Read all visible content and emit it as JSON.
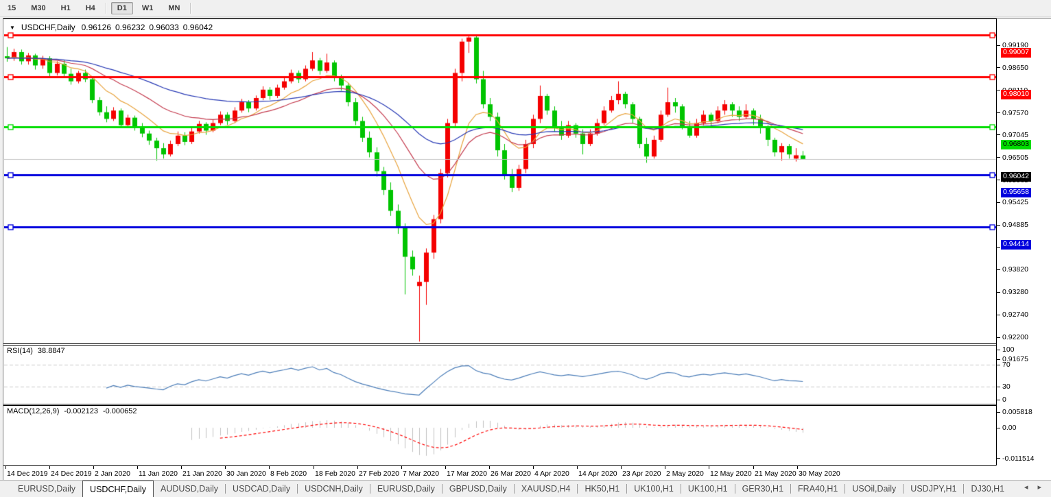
{
  "toolbar": {
    "timeframes": [
      {
        "label": "15",
        "active": false
      },
      {
        "label": "M30",
        "active": false
      },
      {
        "label": "H1",
        "active": false
      },
      {
        "label": "H4",
        "active": false
      },
      {
        "label": "D1",
        "active": true
      },
      {
        "label": "W1",
        "active": false
      },
      {
        "label": "MN",
        "active": false
      }
    ]
  },
  "chart_header": {
    "dropdown_icon": "▼",
    "symbol": "USDCHF,Daily",
    "open": "0.96126",
    "high": "0.96232",
    "low": "0.96033",
    "close": "0.96042"
  },
  "price_axis": {
    "ticks": [
      "0.99190",
      "0.98650",
      "0.98110",
      "0.97570",
      "0.97045",
      "0.96505",
      "0.95965",
      "0.95425",
      "0.94885",
      "0.94345",
      "0.93820",
      "0.93280",
      "0.92740",
      "0.92200",
      "0.91675"
    ]
  },
  "chart_data": {
    "type": "candlestick",
    "symbol": "USDCHF",
    "timeframe": "Daily",
    "bull_color": "#f40000",
    "bear_color": "#00c400",
    "price_axis_top": 0.9919,
    "price_axis_bottom": 0.91675,
    "candles": [
      [
        0.985,
        0.9872,
        0.9837,
        0.9845
      ],
      [
        0.9845,
        0.9868,
        0.9839,
        0.986
      ],
      [
        0.986,
        0.9866,
        0.983,
        0.9838
      ],
      [
        0.9838,
        0.9858,
        0.983,
        0.9852
      ],
      [
        0.9852,
        0.9856,
        0.9818,
        0.9828
      ],
      [
        0.9828,
        0.9851,
        0.982,
        0.9845
      ],
      [
        0.9845,
        0.985,
        0.9802,
        0.981
      ],
      [
        0.981,
        0.9838,
        0.9804,
        0.9832
      ],
      [
        0.9832,
        0.984,
        0.9801,
        0.9808
      ],
      [
        0.9808,
        0.982,
        0.9782,
        0.979
      ],
      [
        0.979,
        0.9815,
        0.9785,
        0.981
      ],
      [
        0.981,
        0.9818,
        0.9788,
        0.9795
      ],
      [
        0.9795,
        0.98,
        0.9738,
        0.9745
      ],
      [
        0.9745,
        0.9752,
        0.9708,
        0.9716
      ],
      [
        0.9716,
        0.973,
        0.9692,
        0.97
      ],
      [
        0.97,
        0.9728,
        0.9695,
        0.972
      ],
      [
        0.972,
        0.9725,
        0.9678,
        0.9685
      ],
      [
        0.9685,
        0.971,
        0.968,
        0.9703
      ],
      [
        0.9703,
        0.9708,
        0.9672,
        0.968
      ],
      [
        0.968,
        0.969,
        0.9656,
        0.9665
      ],
      [
        0.9665,
        0.9672,
        0.9638,
        0.9648
      ],
      [
        0.9648,
        0.9655,
        0.96,
        0.963
      ],
      [
        0.963,
        0.9642,
        0.9605,
        0.9615
      ],
      [
        0.9615,
        0.9648,
        0.961,
        0.964
      ],
      [
        0.964,
        0.967,
        0.9635,
        0.966
      ],
      [
        0.966,
        0.9668,
        0.9637,
        0.9645
      ],
      [
        0.9645,
        0.9678,
        0.964,
        0.967
      ],
      [
        0.967,
        0.9695,
        0.9665,
        0.9688
      ],
      [
        0.9688,
        0.9692,
        0.9662,
        0.9672
      ],
      [
        0.9672,
        0.9698,
        0.9668,
        0.969
      ],
      [
        0.969,
        0.9718,
        0.9685,
        0.971
      ],
      [
        0.971,
        0.9716,
        0.9686,
        0.9695
      ],
      [
        0.9695,
        0.9728,
        0.969,
        0.972
      ],
      [
        0.972,
        0.9748,
        0.9715,
        0.974
      ],
      [
        0.974,
        0.9745,
        0.9716,
        0.9725
      ],
      [
        0.9725,
        0.9756,
        0.972,
        0.975
      ],
      [
        0.975,
        0.9778,
        0.9745,
        0.977
      ],
      [
        0.977,
        0.9776,
        0.9746,
        0.9755
      ],
      [
        0.9755,
        0.9782,
        0.975,
        0.9775
      ],
      [
        0.9775,
        0.9798,
        0.977,
        0.979
      ],
      [
        0.979,
        0.9818,
        0.9785,
        0.981
      ],
      [
        0.981,
        0.9816,
        0.9786,
        0.9795
      ],
      [
        0.9795,
        0.9828,
        0.979,
        0.982
      ],
      [
        0.982,
        0.986,
        0.9815,
        0.984
      ],
      [
        0.984,
        0.9846,
        0.9806,
        0.9815
      ],
      [
        0.9815,
        0.9856,
        0.981,
        0.9835
      ],
      [
        0.9835,
        0.984,
        0.979,
        0.98
      ],
      [
        0.98,
        0.9806,
        0.9768,
        0.978
      ],
      [
        0.978,
        0.9785,
        0.973,
        0.974
      ],
      [
        0.974,
        0.975,
        0.9685,
        0.9695
      ],
      [
        0.9695,
        0.9705,
        0.9645,
        0.9655
      ],
      [
        0.9655,
        0.967,
        0.9608,
        0.962
      ],
      [
        0.962,
        0.9632,
        0.9562,
        0.9575
      ],
      [
        0.9575,
        0.9585,
        0.9518,
        0.953
      ],
      [
        0.953,
        0.9548,
        0.9468,
        0.948
      ],
      [
        0.948,
        0.9495,
        0.9425,
        0.944
      ],
      [
        0.944,
        0.945,
        0.928,
        0.937
      ],
      [
        0.937,
        0.9385,
        0.9325,
        0.934
      ],
      [
        0.93,
        0.9325,
        0.9167,
        0.931
      ],
      [
        0.931,
        0.939,
        0.9255,
        0.938
      ],
      [
        0.938,
        0.947,
        0.9365,
        0.946
      ],
      [
        0.946,
        0.958,
        0.945,
        0.957
      ],
      [
        0.957,
        0.97,
        0.956,
        0.969
      ],
      [
        0.969,
        0.982,
        0.968,
        0.981
      ],
      [
        0.981,
        0.9892,
        0.979,
        0.9885
      ],
      [
        0.9885,
        0.9901,
        0.9858,
        0.9895
      ],
      [
        0.9895,
        0.9898,
        0.9785,
        0.9795
      ],
      [
        0.9795,
        0.9815,
        0.9725,
        0.9735
      ],
      [
        0.9735,
        0.975,
        0.9695,
        0.9705
      ],
      [
        0.9705,
        0.9715,
        0.961,
        0.9625
      ],
      [
        0.9625,
        0.964,
        0.9555,
        0.9565
      ],
      [
        0.9565,
        0.958,
        0.9525,
        0.9535
      ],
      [
        0.9535,
        0.959,
        0.9528,
        0.958
      ],
      [
        0.958,
        0.965,
        0.957,
        0.964
      ],
      [
        0.964,
        0.971,
        0.963,
        0.97
      ],
      [
        0.97,
        0.978,
        0.969,
        0.9755
      ],
      [
        0.9755,
        0.976,
        0.971,
        0.972
      ],
      [
        0.972,
        0.973,
        0.967,
        0.968
      ],
      [
        0.968,
        0.9695,
        0.965,
        0.966
      ],
      [
        0.966,
        0.9695,
        0.9655,
        0.9685
      ],
      [
        0.9685,
        0.969,
        0.9655,
        0.9665
      ],
      [
        0.9665,
        0.9675,
        0.9615,
        0.964
      ],
      [
        0.964,
        0.9675,
        0.9635,
        0.9665
      ],
      [
        0.9665,
        0.97,
        0.966,
        0.969
      ],
      [
        0.969,
        0.973,
        0.9685,
        0.972
      ],
      [
        0.972,
        0.9755,
        0.9715,
        0.9745
      ],
      [
        0.9745,
        0.979,
        0.9735,
        0.976
      ],
      [
        0.976,
        0.9765,
        0.9725,
        0.9735
      ],
      [
        0.9735,
        0.974,
        0.969,
        0.97
      ],
      [
        0.97,
        0.9705,
        0.963,
        0.964
      ],
      [
        0.964,
        0.9655,
        0.9595,
        0.961
      ],
      [
        0.961,
        0.966,
        0.9605,
        0.965
      ],
      [
        0.965,
        0.972,
        0.9645,
        0.971
      ],
      [
        0.971,
        0.9775,
        0.9705,
        0.974
      ],
      [
        0.974,
        0.975,
        0.9715,
        0.973
      ],
      [
        0.973,
        0.9735,
        0.9675,
        0.968
      ],
      [
        0.968,
        0.9695,
        0.9655,
        0.966
      ],
      [
        0.966,
        0.97,
        0.9655,
        0.969
      ],
      [
        0.969,
        0.972,
        0.9685,
        0.971
      ],
      [
        0.971,
        0.9715,
        0.968,
        0.9695
      ],
      [
        0.9695,
        0.973,
        0.969,
        0.972
      ],
      [
        0.972,
        0.9745,
        0.971,
        0.9735
      ],
      [
        0.9735,
        0.974,
        0.9705,
        0.972
      ],
      [
        0.972,
        0.973,
        0.9695,
        0.9705
      ],
      [
        0.9705,
        0.9735,
        0.97,
        0.972
      ],
      [
        0.972,
        0.9725,
        0.9685,
        0.97
      ],
      [
        0.97,
        0.971,
        0.9665,
        0.968
      ],
      [
        0.968,
        0.9685,
        0.9635,
        0.965
      ],
      [
        0.965,
        0.9655,
        0.961,
        0.962
      ],
      [
        0.962,
        0.9642,
        0.96,
        0.9635
      ],
      [
        0.9635,
        0.964,
        0.9605,
        0.9615
      ],
      [
        0.9605,
        0.963,
        0.9598,
        0.9613
      ],
      [
        0.96126,
        0.96232,
        0.96033,
        0.96042
      ]
    ],
    "moving_averages": [
      {
        "name": "fast-ma",
        "period": 9,
        "color": "#e8a33d"
      },
      {
        "name": "mid-ma",
        "period": 21,
        "color": "#c43b4e"
      },
      {
        "name": "slow-ma",
        "period": 45,
        "color": "#2638b4"
      }
    ],
    "hlines": [
      {
        "value": 0.99007,
        "label": "0.99007",
        "color": "#ff0000",
        "width": 3
      },
      {
        "value": 0.9801,
        "label": "0.98010",
        "color": "#ff0000",
        "width": 3
      },
      {
        "value": 0.96803,
        "label": "0.96803",
        "color": "#00dd00",
        "width": 3,
        "text_color": "#000"
      },
      {
        "value": 0.95658,
        "label": "0.95658",
        "color": "#0000dd",
        "width": 3
      },
      {
        "value": 0.94414,
        "label": "0.94414",
        "color": "#0000dd",
        "width": 3
      }
    ],
    "current_price": {
      "value": 0.96042,
      "label": "0.96042",
      "line_color": "#c0c0c0",
      "label_bg": "#000000"
    },
    "x_axis_dates": [
      "14 Dec 2019",
      "24 Dec 2019",
      "2 Jan 2020",
      "11 Jan 2020",
      "21 Jan 2020",
      "30 Jan 2020",
      "8 Feb 2020",
      "18 Feb 2020",
      "27 Feb 2020",
      "7 Mar 2020",
      "17 Mar 2020",
      "26 Mar 2020",
      "4 Apr 2020",
      "14 Apr 2020",
      "23 Apr 2020",
      "2 May 2020",
      "12 May 2020",
      "21 May 2020",
      "30 May 2020"
    ],
    "rsi": {
      "label": "RSI(14)",
      "value": "38.8847",
      "period": 14,
      "color": "#4b7db8",
      "ticks": [
        {
          "v": 100,
          "label": "100"
        },
        {
          "v": 70,
          "label": "70"
        },
        {
          "v": 30,
          "label": "30"
        },
        {
          "v": 0,
          "label": "0"
        }
      ],
      "levels": [
        70,
        30
      ]
    },
    "macd": {
      "label": "MACD(12,26,9)",
      "value": "-0.002123",
      "signal_value": "-0.000652",
      "fast": 12,
      "slow": 26,
      "signal": 9,
      "hist_color": "#c0c0c0",
      "signal_color": "#ff0000",
      "ticks": [
        {
          "v": 0.005818,
          "label": "0.005818"
        },
        {
          "v": 0,
          "label": "0.00"
        },
        {
          "v": -0.011514,
          "label": "-0.011514"
        }
      ]
    }
  },
  "tab_bar": {
    "scroll_left_icon": "◂",
    "scroll_right_icon": "▸",
    "tabs": [
      {
        "label": "EURUSD,Daily",
        "active": false
      },
      {
        "label": "USDCHF,Daily",
        "active": true
      },
      {
        "label": "AUDUSD,Daily",
        "active": false
      },
      {
        "label": "USDCAD,Daily",
        "active": false
      },
      {
        "label": "USDCNH,Daily",
        "active": false
      },
      {
        "label": "EURUSD,Daily",
        "active": false
      },
      {
        "label": "GBPUSD,Daily",
        "active": false
      },
      {
        "label": "XAUUSD,H4",
        "active": false
      },
      {
        "label": "HK50,H1",
        "active": false
      },
      {
        "label": "UK100,H1",
        "active": false
      },
      {
        "label": "UK100,H1",
        "active": false
      },
      {
        "label": "GER30,H1",
        "active": false
      },
      {
        "label": "FRA40,H1",
        "active": false
      },
      {
        "label": "USOil,Daily",
        "active": false
      },
      {
        "label": "USDJPY,H1",
        "active": false
      },
      {
        "label": "DJ30,H1",
        "active": false
      }
    ]
  }
}
